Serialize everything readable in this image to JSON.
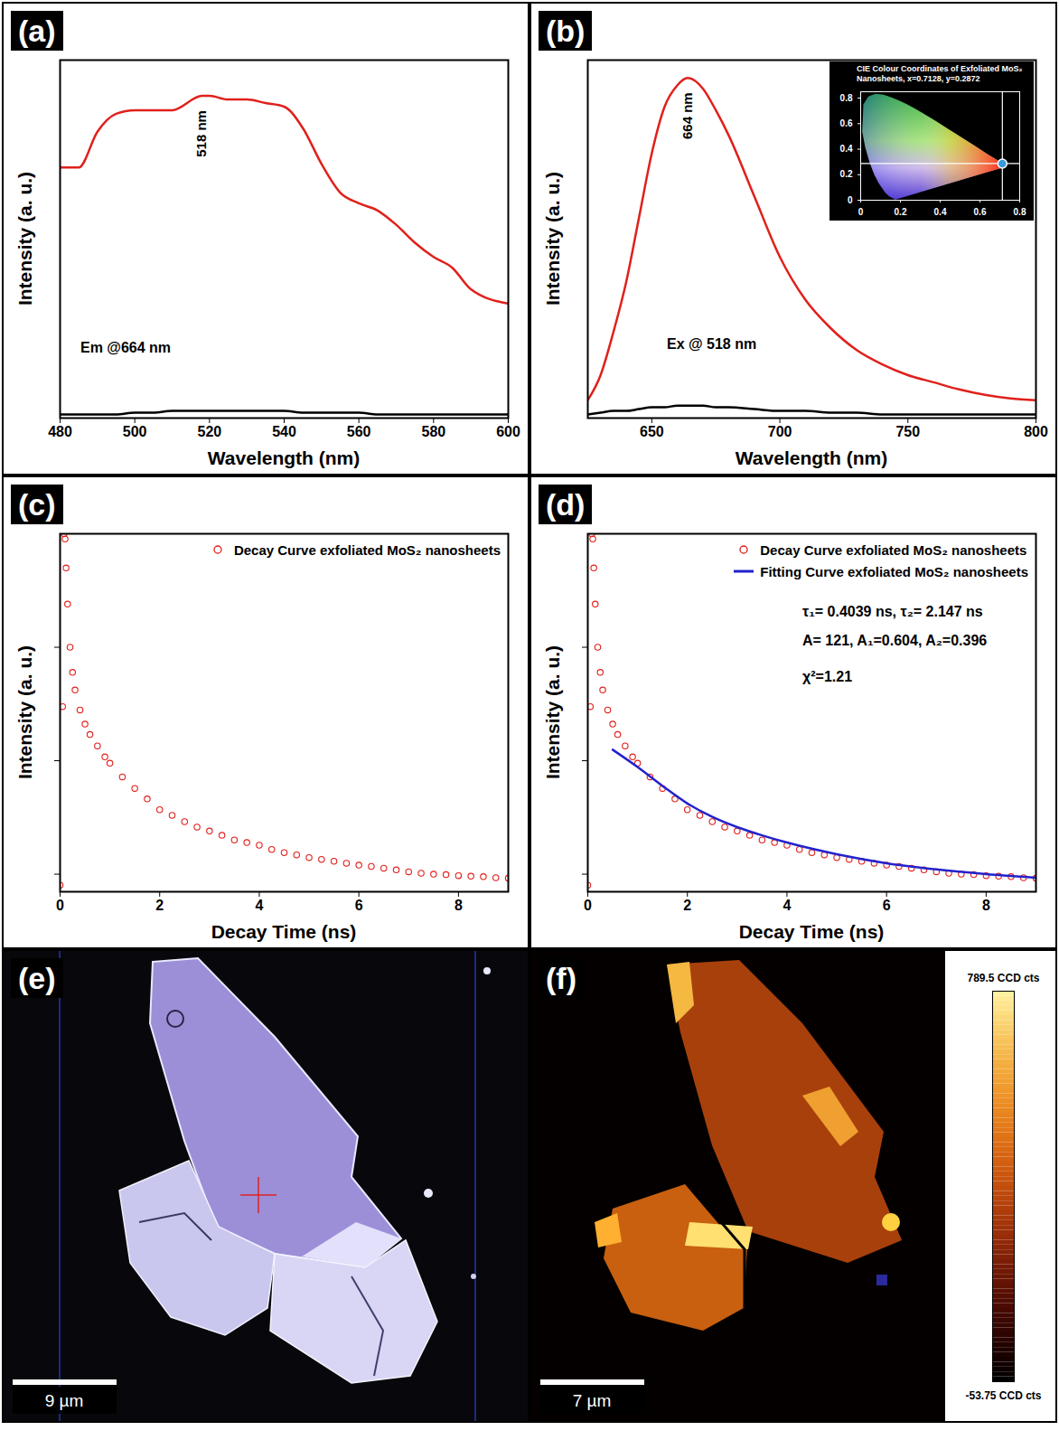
{
  "chart_data": [
    {
      "type": "line",
      "label": "(a)",
      "xlabel": "Wavelength (nm)",
      "ylabel": "Intensity (a. u.)",
      "xlim": [
        480,
        600
      ],
      "xticks": [
        480,
        500,
        520,
        540,
        560,
        580,
        600
      ],
      "ylim": [
        0,
        100
      ],
      "tick_labels": "x",
      "x": [
        480,
        485,
        490,
        495,
        500,
        505,
        510,
        518,
        520,
        525,
        530,
        535,
        540,
        545,
        550,
        555,
        560,
        565,
        570,
        575,
        580,
        585,
        590,
        600
      ],
      "series": [
        {
          "color": "#e0201b",
          "values": [
            70,
            70,
            80,
            85,
            86,
            86,
            86,
            90,
            90,
            89,
            89,
            88,
            87,
            81,
            71,
            63,
            60,
            58,
            54,
            49,
            45,
            42,
            36,
            32
          ]
        },
        {
          "color": "#000000",
          "values": [
            1,
            1,
            1,
            1,
            1.5,
            1.5,
            2,
            2,
            2,
            2,
            2,
            2,
            2,
            1.5,
            1.5,
            1.5,
            1.5,
            1,
            1,
            1,
            1,
            1,
            1,
            1
          ]
        }
      ],
      "annotations": [
        {
          "text": "518 nm",
          "x": 518
        },
        {
          "text": "Em @664 nm"
        }
      ]
    },
    {
      "type": "line",
      "label": "(b)",
      "xlabel": "Wavelength (nm)",
      "ylabel": "Intensity (a. u.)",
      "xlim": [
        625,
        800
      ],
      "xticks": [
        650,
        700,
        750,
        800
      ],
      "ylim": [
        0,
        100
      ],
      "tick_labels": "x",
      "x": [
        625,
        630,
        635,
        640,
        645,
        650,
        655,
        660,
        664,
        670,
        675,
        680,
        690,
        700,
        710,
        720,
        730,
        740,
        750,
        760,
        770,
        780,
        790,
        800
      ],
      "series": [
        {
          "color": "#e0201b",
          "values": [
            5,
            12,
            24,
            38,
            56,
            74,
            87,
            93,
            95,
            92,
            86,
            79,
            62,
            45,
            33,
            25,
            19,
            15,
            12,
            10,
            8,
            6.5,
            5.5,
            5
          ]
        },
        {
          "color": "#000000",
          "values": [
            1,
            1.5,
            2,
            2,
            2.5,
            3,
            3,
            3.5,
            3.5,
            3.5,
            3,
            3,
            2.5,
            2,
            2,
            1.5,
            1.5,
            1,
            1,
            1,
            1,
            1,
            1,
            1
          ]
        }
      ],
      "annotations": [
        {
          "text": "664 nm",
          "x": 664
        },
        {
          "text": "Ex @ 518 nm"
        }
      ],
      "inset": {
        "type": "scatter",
        "title": "CIE Colour Coordinates of Exfoliated MoS₂ Nanosheets, x=0.7128, y=0.2872",
        "x": [
          0.7128
        ],
        "y": [
          0.2872
        ],
        "color": "#3b9ad9",
        "xlim": [
          0,
          0.8
        ],
        "xticks": [
          0,
          0.2,
          0.4,
          0.6,
          0.8
        ],
        "ylim": [
          0,
          0.85
        ],
        "yticks": [
          0,
          0.2,
          0.4,
          0.6,
          0.8
        ],
        "gamut": {
          "x": [
            0.1741,
            0.144,
            0.1241,
            0.0913,
            0.0687,
            0.0454,
            0.0235,
            0.0082,
            0.0139,
            0.0389,
            0.0743,
            0.1142,
            0.1547,
            0.1929,
            0.2296,
            0.2658,
            0.3016,
            0.3373,
            0.3731,
            0.4087,
            0.4441,
            0.4788,
            0.5125,
            0.5448,
            0.5752,
            0.6029,
            0.627,
            0.6482,
            0.6658,
            0.6801,
            0.7347
          ],
          "y": [
            0.005,
            0.0297,
            0.0578,
            0.1327,
            0.2007,
            0.295,
            0.4127,
            0.5384,
            0.7502,
            0.812,
            0.8338,
            0.8262,
            0.8059,
            0.7816,
            0.7543,
            0.7243,
            0.6923,
            0.6589,
            0.6245,
            0.5896,
            0.5547,
            0.5202,
            0.4866,
            0.4544,
            0.4242,
            0.3965,
            0.3725,
            0.3514,
            0.334,
            0.3197,
            0.2653
          ]
        }
      }
    },
    {
      "type": "scatter",
      "label": "(c)",
      "xlabel": "Decay Time (ns)",
      "ylabel": "Intensity (a. u.)",
      "log": "y",
      "xlim": [
        0,
        9
      ],
      "xticks": [
        0,
        2,
        4,
        6,
        8
      ],
      "ylim": [
        7,
        10000
      ],
      "yticks": [
        10,
        100,
        1000
      ],
      "tick_labels": "x",
      "legend": "top-right",
      "series": [
        {
          "name": "Decay Curve exfoliated MoS₂ nanosheets",
          "type": "scatter",
          "marker": "circle",
          "color": "#e0201b",
          "x": [
            0,
            0.05,
            0.08,
            0.1,
            0.12,
            0.15,
            0.2,
            0.25,
            0.3,
            0.4,
            0.5,
            0.6,
            0.75,
            0.9,
            1,
            1.25,
            1.5,
            1.75,
            2,
            2.25,
            2.5,
            2.75,
            3,
            3.25,
            3.5,
            3.75,
            4,
            4.25,
            4.5,
            4.75,
            5,
            5.25,
            5.5,
            5.75,
            6,
            6.25,
            6.5,
            6.75,
            7,
            7.25,
            7.5,
            7.75,
            8,
            8.25,
            8.5,
            8.75,
            9
          ],
          "values": [
            8,
            300,
            10000,
            9000,
            5000,
            2400,
            1000,
            600,
            420,
            280,
            210,
            170,
            135,
            108,
            95,
            72,
            57,
            46,
            37,
            33,
            29,
            26,
            24,
            22,
            20,
            19,
            18,
            16.5,
            15.5,
            14.8,
            14,
            13.5,
            13,
            12.5,
            12,
            11.7,
            11.3,
            10.9,
            10.5,
            10.2,
            10,
            9.9,
            9.7,
            9.6,
            9.5,
            9.3,
            9.2
          ]
        }
      ]
    },
    {
      "type": "scatter",
      "label": "(d)",
      "xlabel": "Decay Time (ns)",
      "ylabel": "Intensity (a. u.)",
      "log": "y",
      "xlim": [
        0,
        9
      ],
      "xticks": [
        0,
        2,
        4,
        6,
        8
      ],
      "ylim": [
        7,
        10000
      ],
      "yticks": [
        10,
        100,
        1000
      ],
      "tick_labels": "x",
      "legend": "top-right",
      "series": [
        {
          "name": "Decay Curve exfoliated MoS₂ nanosheets",
          "type": "scatter",
          "marker": "circle",
          "color": "#e0201b",
          "x": [
            0,
            0.05,
            0.08,
            0.1,
            0.12,
            0.15,
            0.2,
            0.25,
            0.3,
            0.4,
            0.5,
            0.6,
            0.75,
            0.9,
            1,
            1.25,
            1.5,
            1.75,
            2,
            2.25,
            2.5,
            2.75,
            3,
            3.25,
            3.5,
            3.75,
            4,
            4.25,
            4.5,
            4.75,
            5,
            5.25,
            5.5,
            5.75,
            6,
            6.25,
            6.5,
            6.75,
            7,
            7.25,
            7.5,
            7.75,
            8,
            8.25,
            8.5,
            8.75,
            9
          ],
          "values": [
            8,
            300,
            10000,
            9000,
            5000,
            2400,
            1000,
            600,
            420,
            280,
            210,
            170,
            135,
            108,
            95,
            72,
            57,
            46,
            37,
            33,
            29,
            26,
            24,
            22,
            20,
            19,
            18,
            16.5,
            15.5,
            14.8,
            14,
            13.5,
            13,
            12.5,
            12,
            11.7,
            11.3,
            10.9,
            10.5,
            10.2,
            10,
            9.9,
            9.7,
            9.6,
            9.5,
            9.3,
            9.2
          ]
        },
        {
          "name": "Fitting Curve exfoliated MoS₂ nanosheets",
          "type": "line",
          "line_style": "solid",
          "color": "#2222cc",
          "x": [
            0.5,
            1,
            1.5,
            2,
            2.5,
            3,
            3.5,
            4,
            5,
            6,
            7,
            8,
            9
          ],
          "values": [
            125,
            88,
            60,
            42,
            32,
            26,
            22,
            19,
            15,
            12.5,
            11,
            10,
            9.3
          ]
        }
      ],
      "annotations": [
        {
          "text": "τ₁= 0.4039 ns, τ₂= 2.147 ns"
        },
        {
          "text": "A= 121, A₁=0.604, A₂=0.396"
        },
        {
          "text": "χ²=1.21"
        }
      ]
    },
    {
      "type": "image",
      "label": "(e)",
      "scale_bar": "9 µm"
    },
    {
      "type": "map",
      "label": "(f)",
      "scale_bar": "7 µm",
      "colorbar": {
        "range": [
          -53.75,
          789.5
        ],
        "ticks": [
          {
            "value": 789.5,
            "label": "789.5 CCD cts"
          },
          {
            "value": -53.75,
            "label": "-53.75 CCD cts"
          }
        ]
      }
    }
  ]
}
